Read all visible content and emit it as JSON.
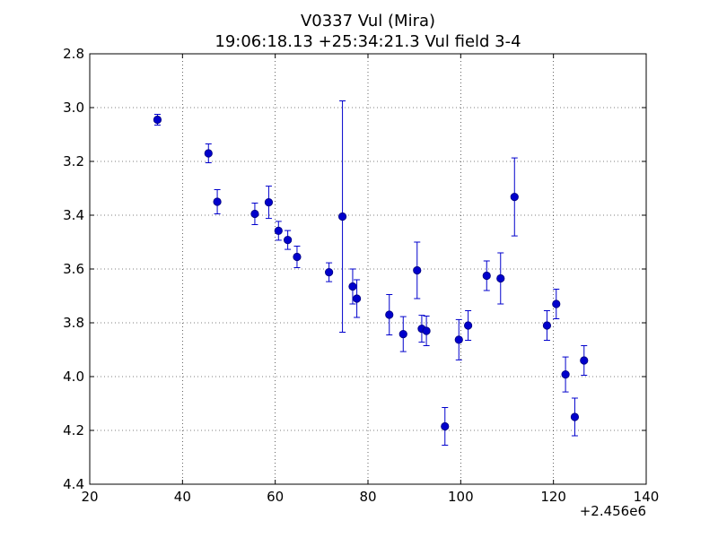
{
  "chart_data": {
    "type": "scatter",
    "title": "V0337 Vul (Mira)",
    "subtitle": "19:06:18.13 +25:34:21.3 Vul field 3-4",
    "xlabel": "",
    "ylabel": "",
    "x_offset_label": "+2.456e6",
    "xlim": [
      20,
      140
    ],
    "ylim": [
      4.4,
      2.8
    ],
    "y_inverted": true,
    "grid": true,
    "x_ticks": [
      "20",
      "40",
      "60",
      "80",
      "100",
      "120",
      "140"
    ],
    "y_ticks": [
      "2.8",
      "3.0",
      "3.2",
      "3.4",
      "3.6",
      "3.8",
      "4.0",
      "4.2",
      "4.4"
    ],
    "marker_color": "#0000cc",
    "errorbar_color": "#0000cc",
    "points": [
      {
        "x": 34.6,
        "y": 3.045,
        "err": 0.02
      },
      {
        "x": 45.6,
        "y": 3.17,
        "err": 0.035
      },
      {
        "x": 47.5,
        "y": 3.35,
        "err": 0.045
      },
      {
        "x": 55.6,
        "y": 3.395,
        "err": 0.04
      },
      {
        "x": 58.6,
        "y": 3.352,
        "err": 0.06
      },
      {
        "x": 60.7,
        "y": 3.458,
        "err": 0.035
      },
      {
        "x": 62.7,
        "y": 3.492,
        "err": 0.035
      },
      {
        "x": 64.7,
        "y": 3.555,
        "err": 0.04
      },
      {
        "x": 71.6,
        "y": 3.612,
        "err": 0.035
      },
      {
        "x": 74.5,
        "y": 3.405,
        "err": 0.43
      },
      {
        "x": 76.7,
        "y": 3.665,
        "err": 0.065
      },
      {
        "x": 77.6,
        "y": 3.71,
        "err": 0.07
      },
      {
        "x": 84.6,
        "y": 3.77,
        "err": 0.075
      },
      {
        "x": 87.6,
        "y": 3.842,
        "err": 0.065
      },
      {
        "x": 90.6,
        "y": 3.605,
        "err": 0.105
      },
      {
        "x": 91.6,
        "y": 3.822,
        "err": 0.05
      },
      {
        "x": 92.6,
        "y": 3.83,
        "err": 0.055
      },
      {
        "x": 96.6,
        "y": 4.185,
        "err": 0.07
      },
      {
        "x": 99.6,
        "y": 3.863,
        "err": 0.075
      },
      {
        "x": 101.6,
        "y": 3.81,
        "err": 0.055
      },
      {
        "x": 105.6,
        "y": 3.625,
        "err": 0.055
      },
      {
        "x": 108.6,
        "y": 3.635,
        "err": 0.095
      },
      {
        "x": 111.6,
        "y": 3.332,
        "err": 0.145
      },
      {
        "x": 118.6,
        "y": 3.81,
        "err": 0.055
      },
      {
        "x": 120.6,
        "y": 3.73,
        "err": 0.055
      },
      {
        "x": 122.6,
        "y": 3.992,
        "err": 0.065
      },
      {
        "x": 124.6,
        "y": 4.15,
        "err": 0.07
      },
      {
        "x": 126.6,
        "y": 3.94,
        "err": 0.055
      }
    ]
  }
}
